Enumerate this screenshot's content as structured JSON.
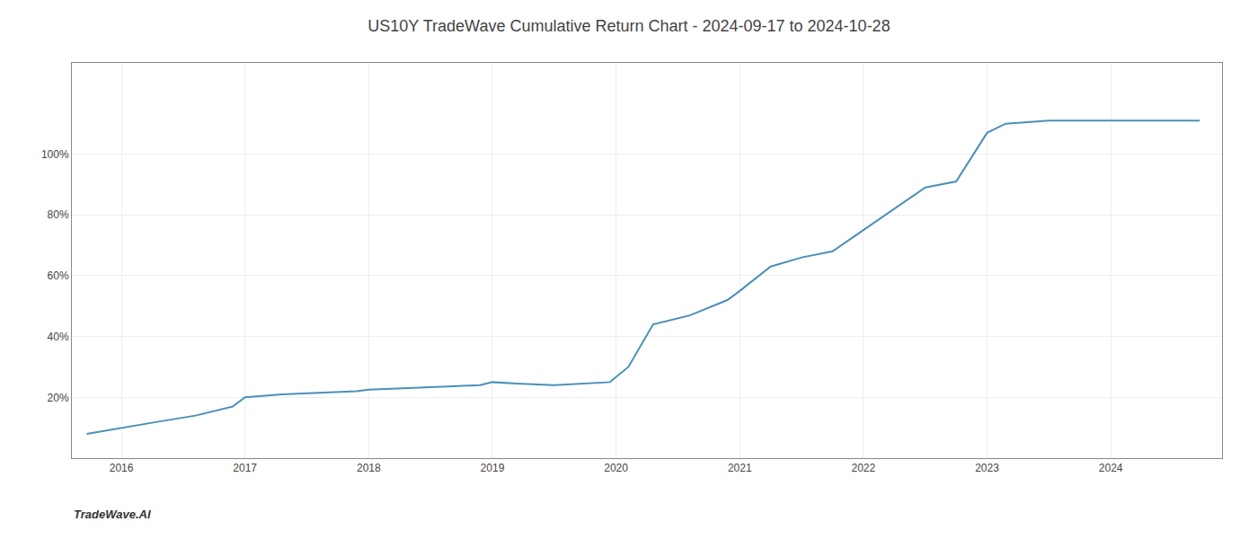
{
  "chart_data": {
    "type": "line",
    "title": "US10Y TradeWave Cumulative Return Chart - 2024-09-17 to 2024-10-28",
    "annotations": [
      "TradeWave.AI"
    ],
    "x": [
      2015.72,
      2016.0,
      2016.3,
      2016.6,
      2016.9,
      2017.0,
      2017.3,
      2017.6,
      2017.9,
      2018.0,
      2018.3,
      2018.6,
      2018.9,
      2019.0,
      2019.2,
      2019.5,
      2019.75,
      2019.95,
      2020.1,
      2020.3,
      2020.6,
      2020.9,
      2021.0,
      2021.25,
      2021.5,
      2021.75,
      2022.0,
      2022.25,
      2022.5,
      2022.75,
      2023.0,
      2023.15,
      2023.5,
      2023.75,
      2024.0,
      2024.72
    ],
    "values": [
      8,
      10,
      12,
      14,
      17,
      20,
      21,
      21.5,
      22,
      22.5,
      23,
      23.5,
      24,
      25,
      24.5,
      24,
      24.5,
      25,
      30,
      44,
      47,
      52,
      55,
      63,
      66,
      68,
      75,
      82,
      89,
      91,
      107,
      110,
      111,
      111,
      111,
      111
    ],
    "color": "#4a90b8",
    "xlim": [
      2015.6,
      2024.9
    ],
    "xticks": [
      2016,
      2017,
      2018,
      2019,
      2020,
      2021,
      2022,
      2023,
      2024
    ],
    "ylim": [
      0,
      130
    ],
    "yticks": [
      {
        "value": 20,
        "label": "20%"
      },
      {
        "value": 40,
        "label": "40%"
      },
      {
        "value": 60,
        "label": "60%"
      },
      {
        "value": 80,
        "label": "80%"
      },
      {
        "value": 100,
        "label": "100%"
      }
    ],
    "grid": true
  }
}
